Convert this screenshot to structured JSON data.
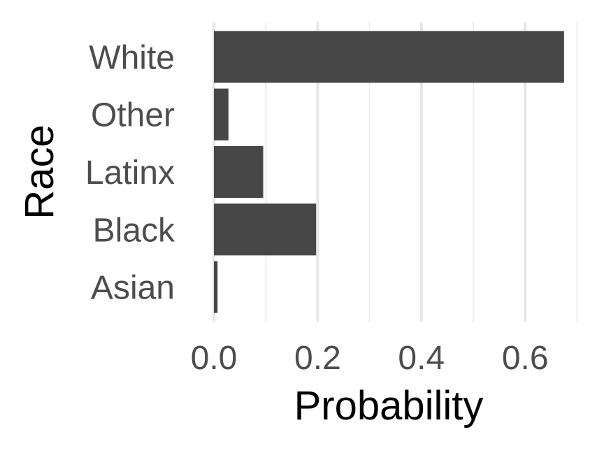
{
  "chart_data": {
    "type": "bar",
    "orientation": "horizontal",
    "title": "",
    "xlabel": "Probability",
    "ylabel": "Race",
    "categories": [
      "Asian",
      "Black",
      "Latinx",
      "Other",
      "White"
    ],
    "values": [
      0.007,
      0.197,
      0.095,
      0.028,
      0.675
    ],
    "xlim": [
      0,
      0.7
    ],
    "xticks": [
      0.0,
      0.2,
      0.4,
      0.6
    ],
    "xtick_labels": [
      "0.0",
      "0.2",
      "0.4",
      "0.6"
    ],
    "grid": "vertical",
    "legend": "none",
    "bar_color": "#474747",
    "grid_major_color": "#e6e6e6",
    "grid_minor_color": "#eeeeee",
    "tick_label_color": "#4d4d4d"
  }
}
